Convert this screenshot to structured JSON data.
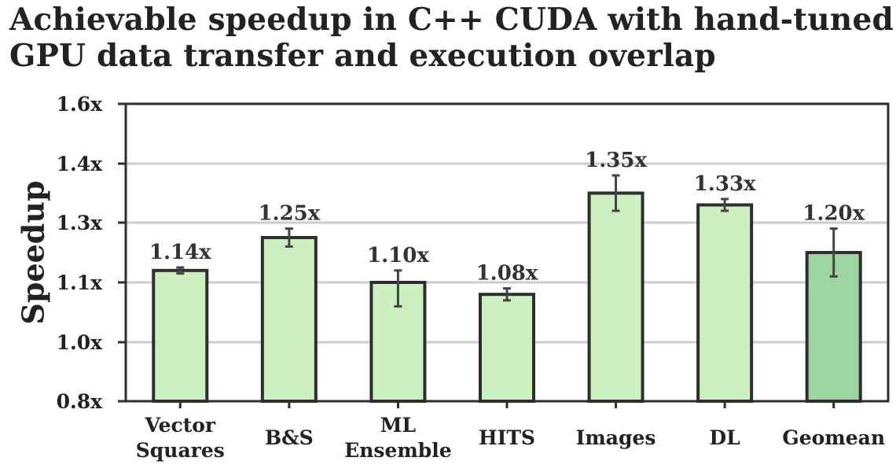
{
  "chart_data": {
    "type": "bar",
    "title": [
      "Achievable speedup in C++ CUDA with hand-tuned",
      "GPU data transfer and execution overlap"
    ],
    "ylabel": "Speedup",
    "xlabel": "",
    "ylim": [
      0.8,
      1.6
    ],
    "yticks": [
      0.8,
      1.0,
      1.1,
      1.3,
      1.4,
      1.6
    ],
    "ytick_labels": [
      "0.8x",
      "1.0x",
      "1.1x",
      "1.3x",
      "1.4x",
      "1.6x"
    ],
    "grid": "horizontal",
    "categories": [
      [
        "Vector",
        "Squares"
      ],
      [
        "B&S"
      ],
      [
        "ML",
        "Ensemble"
      ],
      [
        "HITS"
      ],
      [
        "Images"
      ],
      [
        "DL"
      ],
      [
        "Geomean"
      ]
    ],
    "values": [
      1.14,
      1.25,
      1.1,
      1.08,
      1.35,
      1.33,
      1.2
    ],
    "error": [
      0.01,
      0.03,
      0.04,
      0.01,
      0.03,
      0.01,
      0.08
    ],
    "data_labels": [
      "1.14x",
      "1.25x",
      "1.10x",
      "1.08x",
      "1.35x",
      "1.33x",
      "1.20x"
    ],
    "colors": [
      "#ccf0c0",
      "#ccf0c0",
      "#ccf0c0",
      "#ccf0c0",
      "#ccf0c0",
      "#ccf0c0",
      "#9dd49f"
    ],
    "edge_color": "#2e2e2e",
    "grid_color": "#cccccc"
  }
}
